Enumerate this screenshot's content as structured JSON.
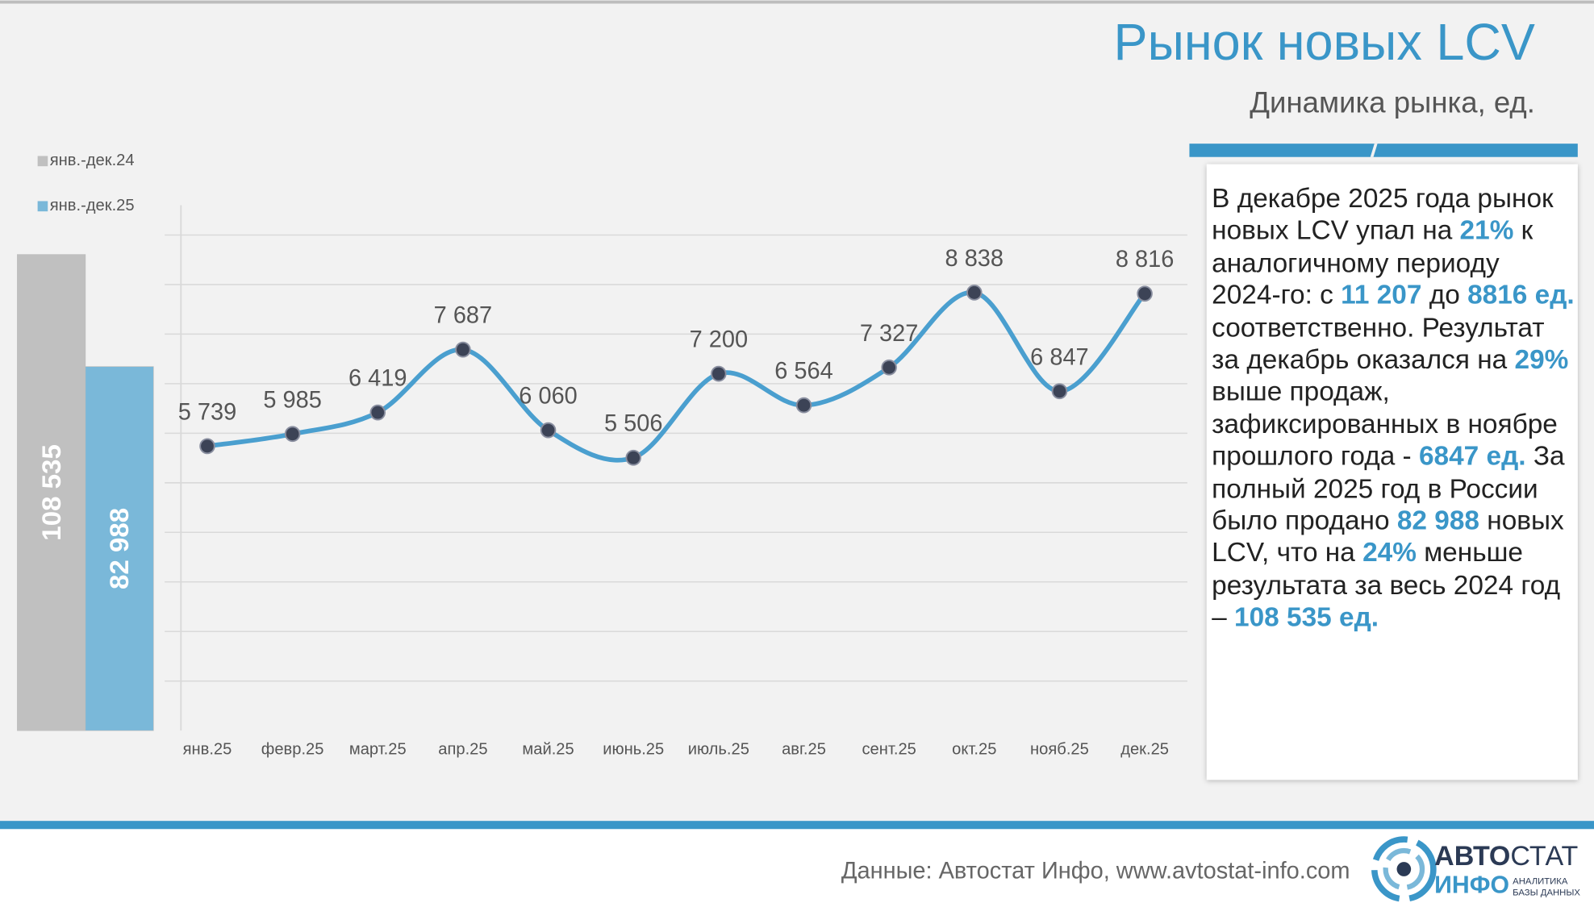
{
  "title": "Рынок новых LCV",
  "subtitle": "Динамика рынка, ед.",
  "chart_data": [
    {
      "type": "bar",
      "series": [
        {
          "name": "янв.-дек.24",
          "color": "#c0c0c0",
          "values": [
            108535
          ],
          "value_labels": [
            "108 535"
          ]
        },
        {
          "name": "янв.-дек.25",
          "color": "#7ab8d9",
          "values": [
            82988
          ],
          "value_labels": [
            "82 988"
          ]
        }
      ],
      "ylim": [
        0,
        120000
      ]
    },
    {
      "type": "line",
      "categories": [
        "янв.25",
        "февр.25",
        "март.25",
        "апр.25",
        "май.25",
        "июнь.25",
        "июль.25",
        "авг.25",
        "сент.25",
        "окт.25",
        "нояб.25",
        "дек.25"
      ],
      "values": [
        5739,
        5985,
        6419,
        7687,
        6060,
        5506,
        7200,
        6564,
        7327,
        8838,
        6847,
        8816
      ],
      "value_labels": [
        "5 739",
        "5 985",
        "6 419",
        "7 687",
        "6 060",
        "5 506",
        "7 200",
        "6 564",
        "7 327",
        "8 838",
        "6 847",
        "8 816"
      ],
      "color": "#4a9fcf",
      "marker_color": "#3c4356",
      "ylim": [
        0,
        10000
      ],
      "yticks": [
        1000,
        2000,
        3000,
        4000,
        5000,
        6000,
        7000,
        8000,
        9000,
        10000
      ],
      "ytick_labels": false,
      "grid": true,
      "smooth": true
    }
  ],
  "commentary": [
    {
      "text": "В декабре 2025 года рынок новых LCV упал на ",
      "highlight": false
    },
    {
      "text": "21%",
      "highlight": true
    },
    {
      "text": " к аналогичному периоду 2024-го: с ",
      "highlight": false
    },
    {
      "text": "11 207",
      "highlight": true
    },
    {
      "text": " до ",
      "highlight": false
    },
    {
      "text": "8816 ед.",
      "highlight": true
    },
    {
      "text": " соответственно. Результат за декабрь оказался на ",
      "highlight": false
    },
    {
      "text": "29%",
      "highlight": true
    },
    {
      "text": " выше продаж, зафиксированных в ноябре прошлого года  - ",
      "highlight": false
    },
    {
      "text": "6847 ед.",
      "highlight": true
    },
    {
      "text": " За полный 2025 год в России было продано ",
      "highlight": false
    },
    {
      "text": "82 988",
      "highlight": true
    },
    {
      "text": " новых LCV, что на ",
      "highlight": false
    },
    {
      "text": "24%",
      "highlight": true
    },
    {
      "text": " меньше результата за весь 2024 год – ",
      "highlight": false
    },
    {
      "text": "108 535 ед.",
      "highlight": true
    }
  ],
  "footer": {
    "source": "Данные: Автостат Инфо, www.avtostat-info.com",
    "logo": {
      "top_bold": "АВТО",
      "top_regular": "СТАТ",
      "bottom": "ИНФО",
      "tag_1": "АНАЛИТИКА",
      "tag_2": "БАЗЫ ДАННЫХ"
    }
  }
}
